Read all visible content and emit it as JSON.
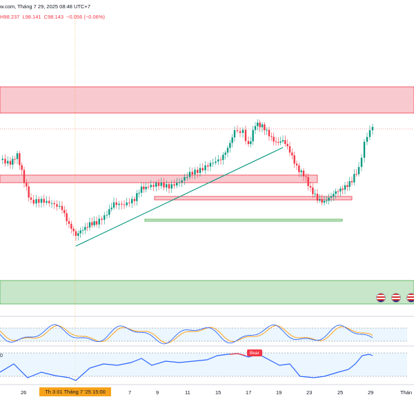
{
  "header": {
    "source_fragment": "w.com, Tháng 7 29, 2025 08:48 UTC+7",
    "ohlc_high": "H98.237",
    "ohlc_low": "L98.141",
    "ohlc_close": "C98.143",
    "change": "−0.056 (−0.06%)"
  },
  "indicators": {
    "panel2_label": "0",
    "bear_label": "Bear"
  },
  "time_axis": {
    "labels": [
      "26",
      "7",
      "9",
      "11",
      "15",
      "17",
      "19",
      "23",
      "25",
      "29",
      "Thán"
    ],
    "crosshair": "Th 3 01 Tháng 7 '25    15:00"
  },
  "colors": {
    "bull": "#089981",
    "bear": "#f23645",
    "resistance_zone": "#f8c9cf",
    "support_zone": "#c8e6c9",
    "trendline": "#089981",
    "stoch_k": "#2962ff",
    "stoch_d": "#ff9800",
    "rsi_line": "#2962ff"
  },
  "flags": [
    "us-flag-icon",
    "us-flag-icon",
    "us-flag-icon"
  ]
}
